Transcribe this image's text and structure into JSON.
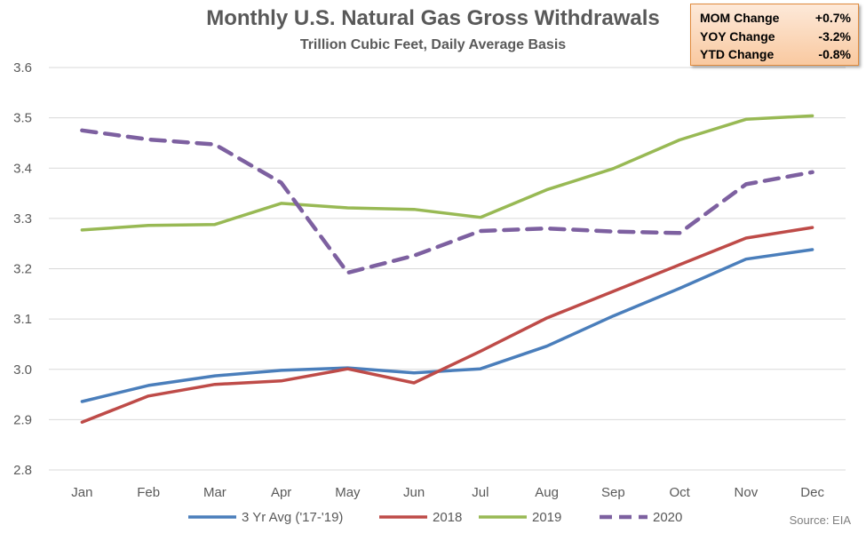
{
  "chart_data": {
    "type": "line",
    "title": "Monthly U.S. Natural Gas Gross Withdrawals",
    "subtitle": "Trillion Cubic Feet, Daily Average Basis",
    "categories": [
      "Jan",
      "Feb",
      "Mar",
      "Apr",
      "May",
      "Jun",
      "Jul",
      "Aug",
      "Sep",
      "Oct",
      "Nov",
      "Dec"
    ],
    "ylim": [
      2.8,
      3.6
    ],
    "yticks": [
      "2.8",
      "2.9",
      "3.0",
      "3.1",
      "3.2",
      "3.3",
      "3.4",
      "3.5",
      "3.6"
    ],
    "grid": true,
    "legend_position": "bottom",
    "series": [
      {
        "name": "3 Yr Avg ('17-'19)",
        "color": "#4a7ebb",
        "dashed": false,
        "values": [
          2.936,
          2.968,
          2.987,
          2.998,
          3.003,
          2.993,
          3.001,
          3.046,
          3.106,
          3.161,
          3.219,
          3.238
        ]
      },
      {
        "name": "2018",
        "color": "#be4b48",
        "dashed": false,
        "values": [
          2.895,
          2.947,
          2.97,
          2.977,
          3.001,
          2.973,
          3.036,
          3.102,
          3.155,
          3.208,
          3.261,
          3.282
        ]
      },
      {
        "name": "2019",
        "color": "#98b954",
        "dashed": false,
        "values": [
          3.277,
          3.286,
          3.288,
          3.33,
          3.321,
          3.318,
          3.302,
          3.357,
          3.399,
          3.456,
          3.497,
          3.504
        ]
      },
      {
        "name": "2020",
        "color": "#7d60a0",
        "dashed": true,
        "values": [
          3.475,
          3.457,
          3.447,
          3.371,
          3.192,
          3.226,
          3.275,
          3.28,
          3.274,
          3.271,
          3.368,
          3.392
        ]
      }
    ]
  },
  "stats_box": {
    "rows": [
      {
        "label": "MOM Change",
        "value": "+0.7%"
      },
      {
        "label": "YOY Change",
        "value": "-3.2%"
      },
      {
        "label": "YTD Change",
        "value": "-0.8%"
      }
    ]
  },
  "source": "Source: EIA"
}
